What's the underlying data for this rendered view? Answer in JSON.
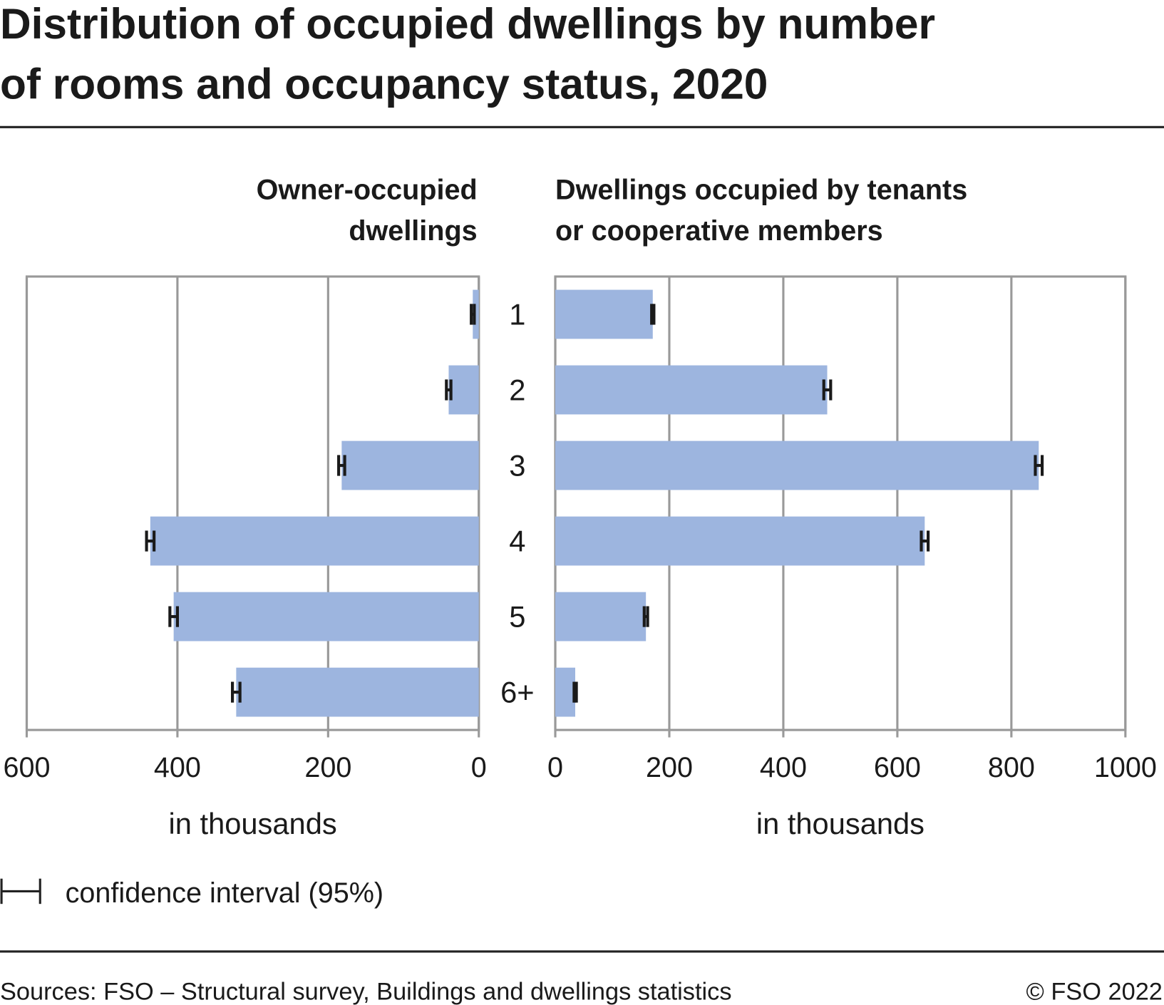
{
  "title": [
    "Distribution of occupied dwellings by number",
    "of rooms and occupancy status, 2020"
  ],
  "legend_label": "confidence interval (95%)",
  "source": "Sources: FSO – Structural survey, Buildings and dwellings statistics",
  "copyright": "© FSO 2022",
  "chart_data": [
    {
      "type": "bar",
      "orientation": "horizontal",
      "title": [
        "Owner-occupied",
        "dwellings"
      ],
      "categories": [
        "1",
        "2",
        "3",
        "4",
        "5",
        "6+"
      ],
      "values": [
        8,
        40,
        182,
        436,
        405,
        322
      ],
      "errors": [
        2,
        3,
        4,
        5,
        5,
        5
      ],
      "color": "#9db5df",
      "xlim": [
        600,
        0
      ],
      "xticks": [
        600,
        400,
        200,
        0
      ],
      "xlabel": "in thousands",
      "grid": true
    },
    {
      "type": "bar",
      "orientation": "horizontal",
      "title": [
        "Dwellings occupied by tenants",
        "or cooperative members"
      ],
      "values": [
        171,
        477,
        848,
        648,
        159,
        35
      ],
      "errors": [
        2,
        6,
        6,
        6,
        3,
        2
      ],
      "color": "#9db5df",
      "xlim": [
        0,
        1000
      ],
      "xticks": [
        0,
        200,
        400,
        600,
        800,
        1000
      ],
      "xlabel": "in thousands",
      "grid": true
    }
  ]
}
